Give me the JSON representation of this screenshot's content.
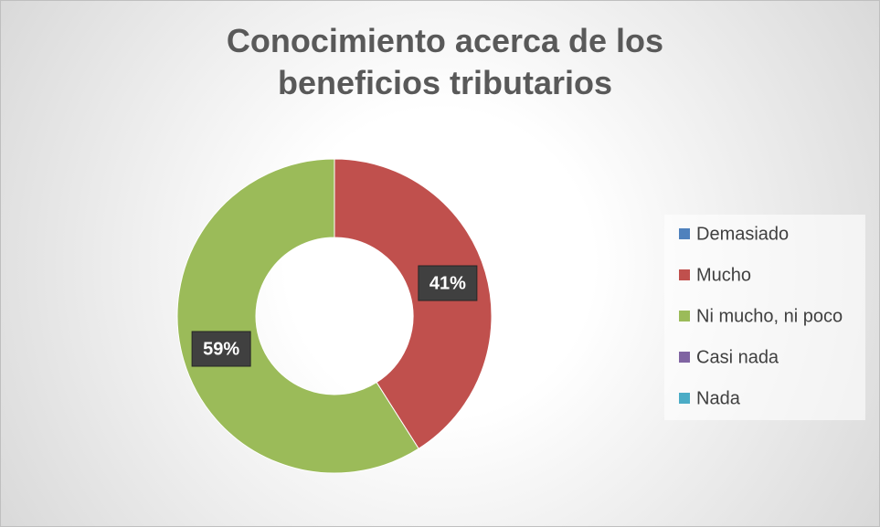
{
  "chart_data": {
    "type": "donut",
    "title": "Conocimiento acerca de los beneficios tributarios",
    "categories": [
      "Demasiado",
      "Mucho",
      "Ni mucho, ni poco",
      "Casi nada",
      "Nada"
    ],
    "values": [
      0,
      41,
      59,
      0,
      0
    ],
    "value_labels": [
      null,
      "41%",
      "59%",
      null,
      null
    ],
    "colors": [
      "#4f81bd",
      "#c0504d",
      "#9bbb59",
      "#8064a2",
      "#4bacc6"
    ],
    "legend": "right"
  }
}
